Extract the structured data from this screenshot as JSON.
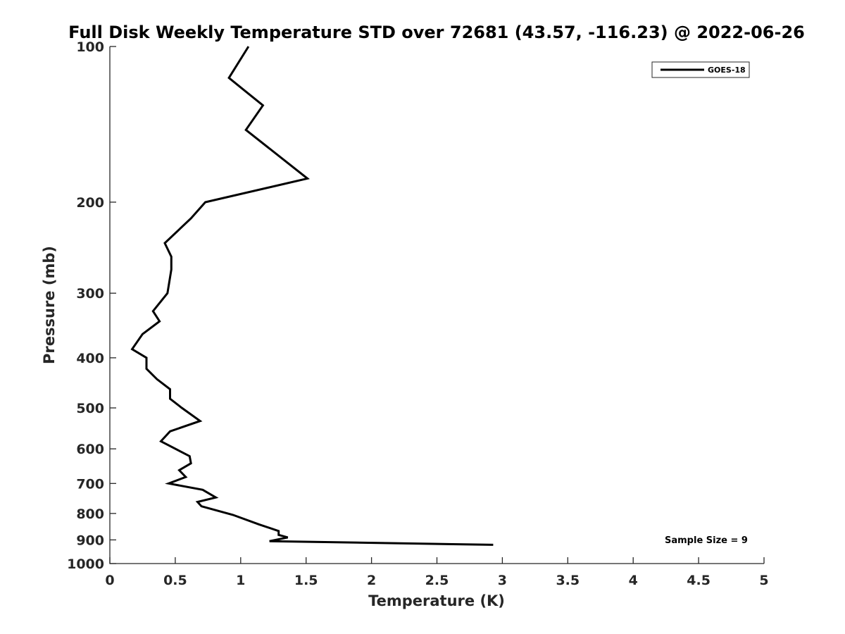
{
  "chart_data": {
    "type": "line",
    "title": "Full Disk Weekly Temperature STD over 72681 (43.57, -116.23) @ 2022-06-26",
    "xlabel": "Temperature (K)",
    "ylabel": "Pressure (mb)",
    "xlim": [
      0,
      5
    ],
    "ylim": [
      100,
      1000
    ],
    "y_scale": "log",
    "y_reversed": true,
    "grid": false,
    "legend_position": "top-right",
    "x_ticks": [
      "0",
      "0.5",
      "1",
      "1.5",
      "2",
      "2.5",
      "3",
      "3.5",
      "4",
      "4.5",
      "5"
    ],
    "x_tick_values": [
      0,
      0.5,
      1,
      1.5,
      2,
      2.5,
      3,
      3.5,
      4,
      4.5,
      5
    ],
    "y_ticks": [
      "100",
      "200",
      "300",
      "400",
      "500",
      "600",
      "700",
      "800",
      "900",
      "1000"
    ],
    "y_tick_values": [
      100,
      200,
      300,
      400,
      500,
      600,
      700,
      800,
      900,
      1000
    ],
    "series": [
      {
        "name": "GOES-18",
        "color": "#000000",
        "x": [
          1.06,
          0.91,
          1.17,
          1.04,
          1.51,
          0.73,
          0.62,
          0.42,
          0.47,
          0.47,
          0.44,
          0.33,
          0.38,
          0.25,
          0.17,
          0.28,
          0.28,
          0.36,
          0.46,
          0.46,
          0.55,
          0.69,
          0.46,
          0.39,
          0.61,
          0.62,
          0.53,
          0.58,
          0.45,
          0.71,
          0.81,
          0.67,
          0.7,
          0.94,
          1.14,
          1.29,
          1.29,
          1.36,
          1.22,
          2.93
        ],
        "y": [
          100,
          115,
          130,
          145,
          180,
          200,
          215,
          240,
          255,
          270,
          300,
          325,
          340,
          360,
          385,
          400,
          420,
          440,
          460,
          480,
          500,
          530,
          555,
          580,
          620,
          640,
          660,
          680,
          700,
          720,
          745,
          760,
          775,
          805,
          840,
          865,
          880,
          890,
          905,
          920
        ]
      }
    ],
    "annotations": [
      "Sample Size = 9"
    ]
  }
}
